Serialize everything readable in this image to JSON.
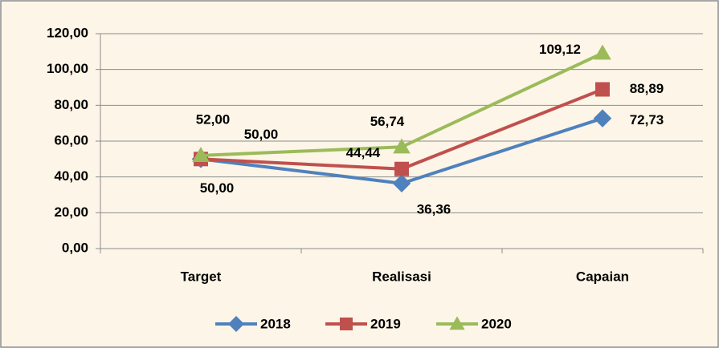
{
  "chart_data": {
    "type": "line",
    "categories": [
      "Target",
      "Realisasi",
      "Capaian"
    ],
    "series": [
      {
        "name": "2018",
        "color": "#4f81bd",
        "values": [
          50,
          36.36,
          72.73
        ],
        "value_labels": [
          "50,00",
          "36,36",
          "72,73"
        ]
      },
      {
        "name": "2019",
        "color": "#c0504d",
        "values": [
          50,
          44.44,
          88.89
        ],
        "value_labels": [
          "50,00",
          "44,44",
          "88,89"
        ]
      },
      {
        "name": "2020",
        "color": "#9bbb59",
        "values": [
          52,
          56.74,
          109.12
        ],
        "value_labels": [
          "52,00",
          "56,74",
          "109,12"
        ]
      }
    ],
    "ylim": [
      0,
      120
    ],
    "yticks": [
      {
        "value": 0,
        "label": "0,00"
      },
      {
        "value": 20,
        "label": "20,00"
      },
      {
        "value": 40,
        "label": "40,00"
      },
      {
        "value": 60,
        "label": "60,00"
      },
      {
        "value": 80,
        "label": "80,00"
      },
      {
        "value": 100,
        "label": "100,00"
      },
      {
        "value": 120,
        "label": "120,00"
      }
    ],
    "grid": true,
    "legend": "bottom"
  }
}
